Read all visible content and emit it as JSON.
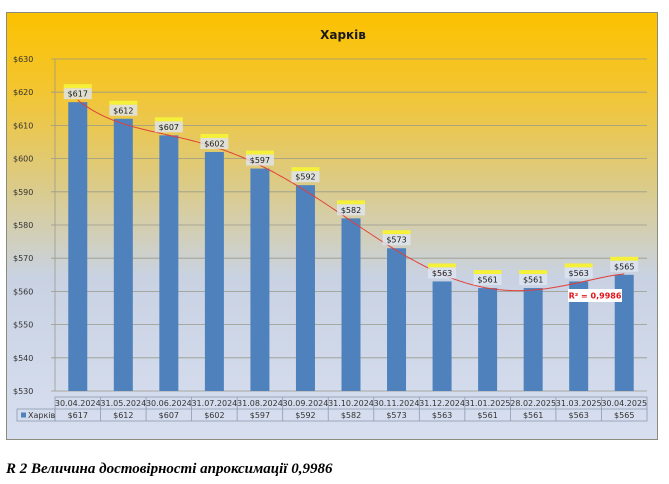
{
  "chart_data": {
    "type": "bar",
    "title": "Харків",
    "categories": [
      "30.04.2024",
      "31.05.2024",
      "30.06.2024",
      "31.07.2024",
      "31.08.2024",
      "30.09.2024",
      "31.10.2024",
      "30.11.2024",
      "31.12.2024",
      "31.01.2025",
      "28.02.2025",
      "31.03.2025",
      "30.04.2025"
    ],
    "series": [
      {
        "name": "Харків",
        "values": [
          617,
          612,
          607,
          602,
          597,
          592,
          582,
          573,
          563,
          561,
          561,
          563,
          565
        ],
        "labels": [
          "$617",
          "$612",
          "$607",
          "$602",
          "$597",
          "$592",
          "$582",
          "$573",
          "$563",
          "$561",
          "$561",
          "$563",
          "$565"
        ],
        "color": "#4f81bd"
      }
    ],
    "ylim": [
      530,
      630
    ],
    "yticks": [
      "$530",
      "$540",
      "$550",
      "$560",
      "$570",
      "$580",
      "$590",
      "$600",
      "$610",
      "$620",
      "$630"
    ],
    "ytick_values": [
      530,
      540,
      550,
      560,
      570,
      580,
      590,
      600,
      610,
      620,
      630
    ],
    "grid": true,
    "trendline": {
      "type": "polynomial",
      "color": "#e0403a",
      "label": "R² = 0,9986"
    },
    "legend": "data-table",
    "xlabel": "",
    "ylabel": ""
  },
  "caption": "R 2 Величина достовірності апроксимації 0,9986"
}
